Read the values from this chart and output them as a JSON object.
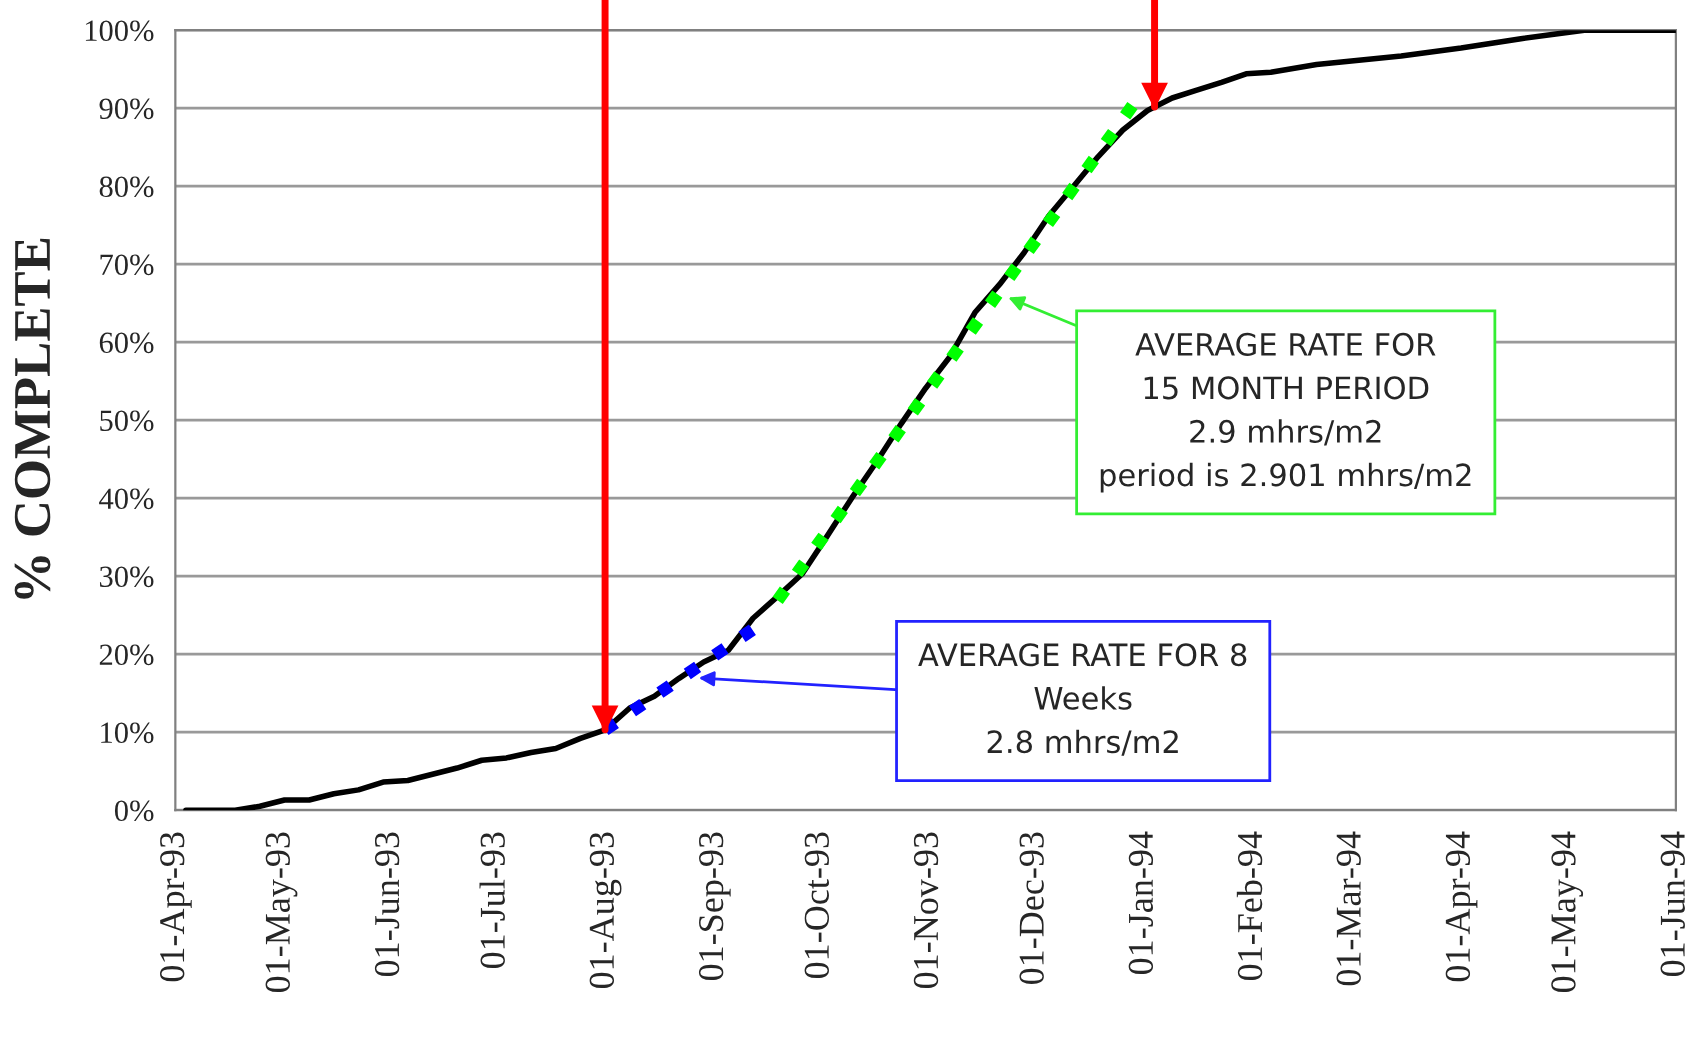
{
  "chart_data": {
    "type": "line",
    "ylabel": "% COMPLETE",
    "x": [
      "1993-04-04",
      "1993-04-18",
      "1993-04-25",
      "1993-05-02",
      "1993-05-09",
      "1993-05-16",
      "1993-05-23",
      "1993-05-30",
      "1993-06-06",
      "1993-06-13",
      "1993-06-20",
      "1993-06-27",
      "1993-07-04",
      "1993-07-11",
      "1993-07-18",
      "1993-07-25",
      "1993-08-01",
      "1993-08-08",
      "1993-08-15",
      "1993-08-22",
      "1993-08-29",
      "1993-09-05",
      "1993-09-12",
      "1993-09-19",
      "1993-09-26",
      "1993-10-03",
      "1993-10-10",
      "1993-10-17",
      "1993-10-24",
      "1993-10-31",
      "1993-11-07",
      "1993-11-14",
      "1993-11-21",
      "1993-11-28",
      "1993-12-05",
      "1993-12-12",
      "1993-12-19",
      "1993-12-26",
      "1994-01-02",
      "1994-01-09",
      "1994-01-16",
      "1994-01-23",
      "1994-01-30",
      "1994-02-06",
      "1994-02-19",
      "1994-03-15",
      "1994-04-01",
      "1994-04-18",
      "1994-05-06",
      "1994-06-01"
    ],
    "series": [
      {
        "color": "#000000",
        "line_style": "solid",
        "values": [
          0,
          0,
          0.5,
          1.3,
          1.3,
          2.1,
          2.6,
          3.6,
          3.8,
          4.6,
          5.4,
          6.4,
          6.7,
          7.4,
          7.9,
          9.2,
          10.3,
          13.1,
          14.6,
          16.9,
          19,
          20.5,
          24.6,
          27.4,
          30.3,
          35.1,
          40,
          44.6,
          49.5,
          54.1,
          58.2,
          63.8,
          67.4,
          71.5,
          76.2,
          80,
          83.8,
          87.2,
          89.7,
          91.3,
          92.3,
          93.3,
          94.4,
          94.6,
          95.6,
          96.7,
          97.7,
          98.9,
          100,
          100
        ]
      },
      {
        "type": "line",
        "color": "#0000ff",
        "line_style": "dotted",
        "x": [
          "1993-08-01",
          "1993-09-14"
        ],
        "values": [
          10.3,
          23.8
        ]
      },
      {
        "type": "line",
        "color": "#00ff00",
        "line_style": "dotted",
        "x": [
          "1993-09-19",
          "1993-12-29"
        ],
        "values": [
          26.9,
          90.5
        ]
      }
    ],
    "xlim": [
      "1993-04-01",
      "1994-06-01"
    ],
    "xticks": [
      {
        "value": "1993-04-01",
        "label": "01-Apr-93"
      },
      {
        "value": "1993-05-01",
        "label": "01-May-93"
      },
      {
        "value": "1993-06-01",
        "label": "01-Jun-93"
      },
      {
        "value": "1993-07-01",
        "label": "01-Jul-93"
      },
      {
        "value": "1993-08-01",
        "label": "01-Aug-93"
      },
      {
        "value": "1993-09-01",
        "label": "01-Sep-93"
      },
      {
        "value": "1993-10-01",
        "label": "01-Oct-93"
      },
      {
        "value": "1993-11-01",
        "label": "01-Nov-93"
      },
      {
        "value": "1993-12-01",
        "label": "01-Dec-93"
      },
      {
        "value": "1994-01-01",
        "label": "01-Jan-94"
      },
      {
        "value": "1994-02-01",
        "label": "01-Feb-94"
      },
      {
        "value": "1994-03-01",
        "label": "01-Mar-94"
      },
      {
        "value": "1994-04-01",
        "label": "01-Apr-94"
      },
      {
        "value": "1994-05-01",
        "label": "01-May-94"
      },
      {
        "value": "1994-06-01",
        "label": "01-Jun-94"
      }
    ],
    "ylim": [
      0,
      100
    ],
    "yticks": [
      {
        "value": 0,
        "label": "0%"
      },
      {
        "value": 10,
        "label": "10%"
      },
      {
        "value": 20,
        "label": "20%"
      },
      {
        "value": 30,
        "label": "30%"
      },
      {
        "value": 40,
        "label": "40%"
      },
      {
        "value": 50,
        "label": "50%"
      },
      {
        "value": 60,
        "label": "60%"
      },
      {
        "value": 70,
        "label": "70%"
      },
      {
        "value": 80,
        "label": "80%"
      },
      {
        "value": 90,
        "label": "90%"
      },
      {
        "value": 100,
        "label": "100%"
      }
    ],
    "grid": "y",
    "ref_lines": [
      {
        "axis": "x",
        "value": "1993-08-01",
        "color": "#ff0000"
      },
      {
        "axis": "x",
        "value": "1994-01-04",
        "color": "#ff0000"
      }
    ],
    "annotations": [
      {
        "text": "AVERAGE RATE FOR 8\nWeeks\n2.8 mhrs/m2",
        "x": "1993-08-26",
        "y": 17
      },
      {
        "text": "AVERAGE RATE FOR\n15 MONTH PERIOD\n2.9 mhrs/m2\nperiod is 2.901 mhrs/m2",
        "x": "1993-11-22",
        "y": 66
      }
    ]
  }
}
